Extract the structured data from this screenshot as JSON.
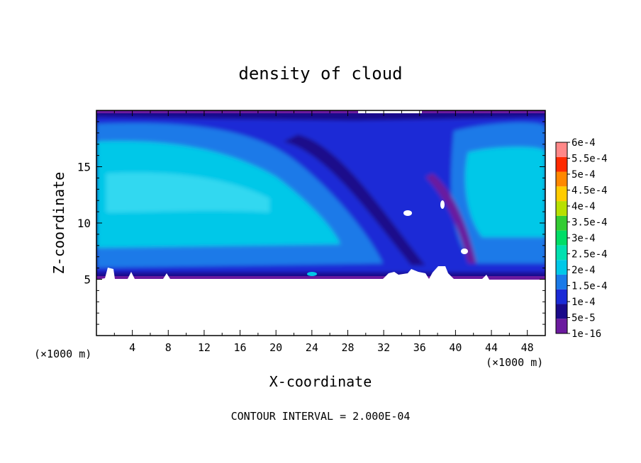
{
  "chart_data": {
    "type": "heatmap",
    "title": "density of cloud",
    "xlabel": "X-coordinate",
    "ylabel": "Z-coordinate",
    "x_unit_left": "(×1000 m)",
    "x_unit_right": "(×1000 m)",
    "footer": "CONTOUR INTERVAL = 2.000E-04",
    "xlim": [
      0,
      50
    ],
    "ylim": [
      0,
      20
    ],
    "x_ticks": [
      4,
      8,
      12,
      16,
      20,
      24,
      28,
      32,
      36,
      40,
      44,
      48
    ],
    "y_ticks": [
      5,
      10,
      15
    ],
    "colorbar": {
      "labels": [
        "1e-16",
        "5e-5",
        "1e-4",
        "1.5e-4",
        "2e-4",
        "2.5e-4",
        "3e-4",
        "3.5e-4",
        "4e-4",
        "4.5e-4",
        "5e-4",
        "5.5e-4",
        "6e-4"
      ],
      "colors": [
        "#6b1a9e",
        "#1a0a8a",
        "#1a2ad6",
        "#1a7ae8",
        "#00c8e8",
        "#00e0b0",
        "#00dd66",
        "#33cc33",
        "#b8e000",
        "#ffcc00",
        "#ff8800",
        "#ff2a00",
        "#ff8888"
      ]
    },
    "features": {
      "cloud_base_z": 5,
      "cloud_top_z": 19.8,
      "core_value_range": "1.5e-4 to 2e-4",
      "local_max_x": 24,
      "local_max_z": 5.4
    }
  }
}
